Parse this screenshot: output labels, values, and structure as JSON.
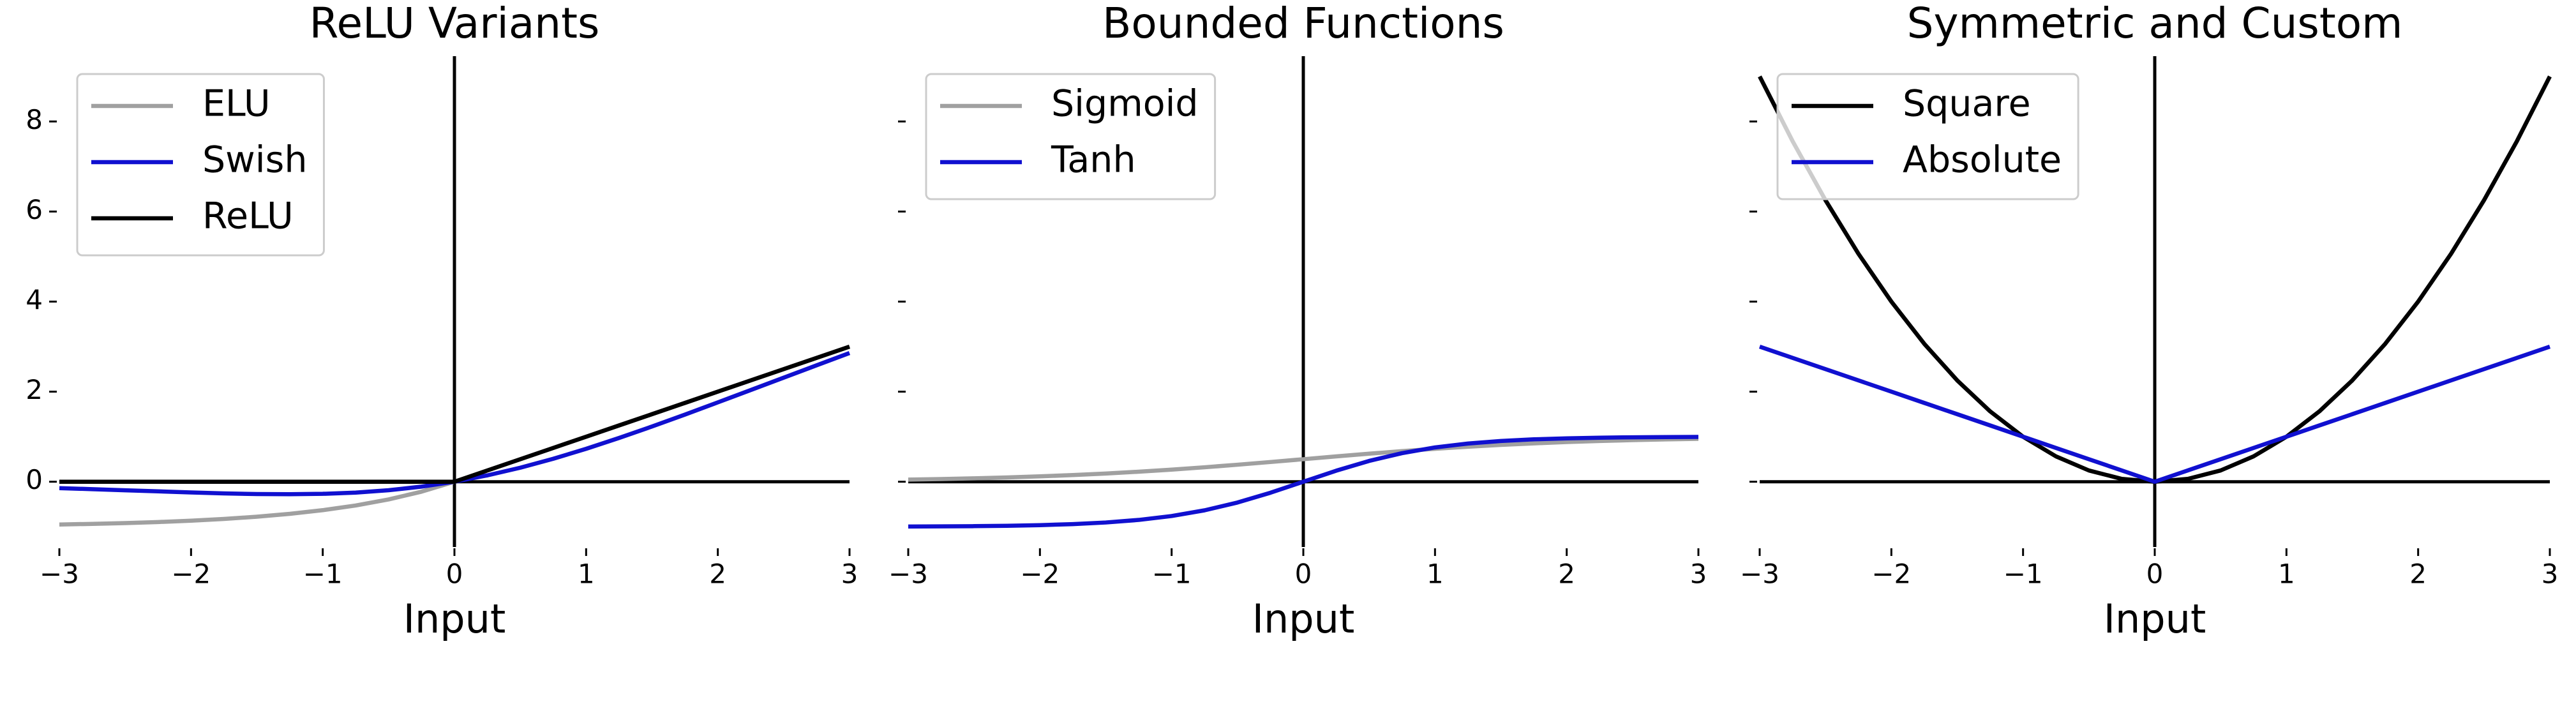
{
  "chart_data": [
    {
      "type": "line",
      "title": "ReLU Variants",
      "xlabel": "Input",
      "x": [
        -3,
        -2.75,
        -2.5,
        -2.25,
        -2,
        -1.75,
        -1.5,
        -1.25,
        -1,
        -0.75,
        -0.5,
        -0.25,
        0,
        0.25,
        0.5,
        0.75,
        1,
        1.25,
        1.5,
        1.75,
        2,
        2.25,
        2.5,
        2.75,
        3
      ],
      "series": [
        {
          "name": "ELU",
          "color": "#a0a0a0",
          "values": [
            -0.95,
            -0.936,
            -0.918,
            -0.895,
            -0.865,
            -0.826,
            -0.777,
            -0.713,
            -0.632,
            -0.528,
            -0.393,
            -0.221,
            0,
            0.25,
            0.5,
            0.75,
            1,
            1.25,
            1.5,
            1.75,
            2,
            2.25,
            2.5,
            2.75,
            3
          ]
        },
        {
          "name": "Swish",
          "color": "#1010d0",
          "values": [
            -0.142,
            -0.165,
            -0.19,
            -0.214,
            -0.238,
            -0.259,
            -0.274,
            -0.278,
            -0.269,
            -0.241,
            -0.189,
            -0.109,
            0,
            0.141,
            0.311,
            0.509,
            0.731,
            0.972,
            1.226,
            1.491,
            1.762,
            2.036,
            2.31,
            2.585,
            2.858
          ]
        },
        {
          "name": "ReLU",
          "color": "#000000",
          "values": [
            0,
            0,
            0,
            0,
            0,
            0,
            0,
            0,
            0,
            0,
            0,
            0,
            0,
            0.25,
            0.5,
            0.75,
            1,
            1.25,
            1.5,
            1.75,
            2,
            2.25,
            2.5,
            2.75,
            3
          ]
        }
      ],
      "xlim": [
        -3,
        3
      ],
      "ylim": [
        -1.45,
        9.45
      ],
      "xticks": [
        {
          "value": -3,
          "label": "−3"
        },
        {
          "value": -2,
          "label": "−2"
        },
        {
          "value": -1,
          "label": "−1"
        },
        0,
        1,
        2,
        3
      ],
      "yticks": [
        0,
        2,
        4,
        6,
        8
      ],
      "show_ytick_labels": true,
      "legend": "upper left"
    },
    {
      "type": "line",
      "title": "Bounded Functions",
      "xlabel": "Input",
      "x": [
        -3,
        -2.75,
        -2.5,
        -2.25,
        -2,
        -1.75,
        -1.5,
        -1.25,
        -1,
        -0.75,
        -0.5,
        -0.25,
        0,
        0.25,
        0.5,
        0.75,
        1,
        1.25,
        1.5,
        1.75,
        2,
        2.25,
        2.5,
        2.75,
        3
      ],
      "series": [
        {
          "name": "Sigmoid",
          "color": "#a0a0a0",
          "values": [
            0.0474,
            0.0601,
            0.0759,
            0.0953,
            0.1192,
            0.148,
            0.1824,
            0.2227,
            0.2689,
            0.3208,
            0.3775,
            0.4378,
            0.5,
            0.5622,
            0.6225,
            0.6792,
            0.7311,
            0.7773,
            0.8176,
            0.852,
            0.8808,
            0.9047,
            0.9241,
            0.9399,
            0.9526
          ]
        },
        {
          "name": "Tanh",
          "color": "#1010d0",
          "values": [
            -0.9951,
            -0.9919,
            -0.9866,
            -0.978,
            -0.964,
            -0.9414,
            -0.9051,
            -0.8483,
            -0.7616,
            -0.6351,
            -0.4621,
            -0.2449,
            0,
            0.2449,
            0.4621,
            0.6351,
            0.7616,
            0.8483,
            0.9051,
            0.9414,
            0.964,
            0.978,
            0.9866,
            0.9919,
            0.9951
          ]
        }
      ],
      "xlim": [
        -3,
        3
      ],
      "ylim": [
        -1.45,
        9.45
      ],
      "xticks": [
        {
          "value": -3,
          "label": "−3"
        },
        {
          "value": -2,
          "label": "−2"
        },
        {
          "value": -1,
          "label": "−1"
        },
        0,
        1,
        2,
        3
      ],
      "yticks": [
        0,
        2,
        4,
        6,
        8
      ],
      "show_ytick_labels": false,
      "legend": "upper left"
    },
    {
      "type": "line",
      "title": "Symmetric and Custom",
      "xlabel": "Input",
      "x": [
        -3,
        -2.75,
        -2.5,
        -2.25,
        -2,
        -1.75,
        -1.5,
        -1.25,
        -1,
        -0.75,
        -0.5,
        -0.25,
        0,
        0.25,
        0.5,
        0.75,
        1,
        1.25,
        1.5,
        1.75,
        2,
        2.25,
        2.5,
        2.75,
        3
      ],
      "series": [
        {
          "name": "Square",
          "color": "#000000",
          "values": [
            9,
            7.5625,
            6.25,
            5.0625,
            4,
            3.0625,
            2.25,
            1.5625,
            1,
            0.5625,
            0.25,
            0.0625,
            0,
            0.0625,
            0.25,
            0.5625,
            1,
            1.5625,
            2.25,
            3.0625,
            4,
            5.0625,
            6.25,
            7.5625,
            9
          ]
        },
        {
          "name": "Absolute",
          "color": "#1010d0",
          "values": [
            3,
            2.75,
            2.5,
            2.25,
            2,
            1.75,
            1.5,
            1.25,
            1,
            0.75,
            0.5,
            0.25,
            0,
            0.25,
            0.5,
            0.75,
            1,
            1.25,
            1.5,
            1.75,
            2,
            2.25,
            2.5,
            2.75,
            3
          ]
        }
      ],
      "xlim": [
        -3,
        3
      ],
      "ylim": [
        -1.45,
        9.45
      ],
      "xticks": [
        {
          "value": -3,
          "label": "−3"
        },
        {
          "value": -2,
          "label": "−2"
        },
        {
          "value": -1,
          "label": "−1"
        },
        0,
        1,
        2,
        3
      ],
      "yticks": [
        0,
        2,
        4,
        6,
        8
      ],
      "show_ytick_labels": false,
      "legend": "upper left"
    }
  ]
}
